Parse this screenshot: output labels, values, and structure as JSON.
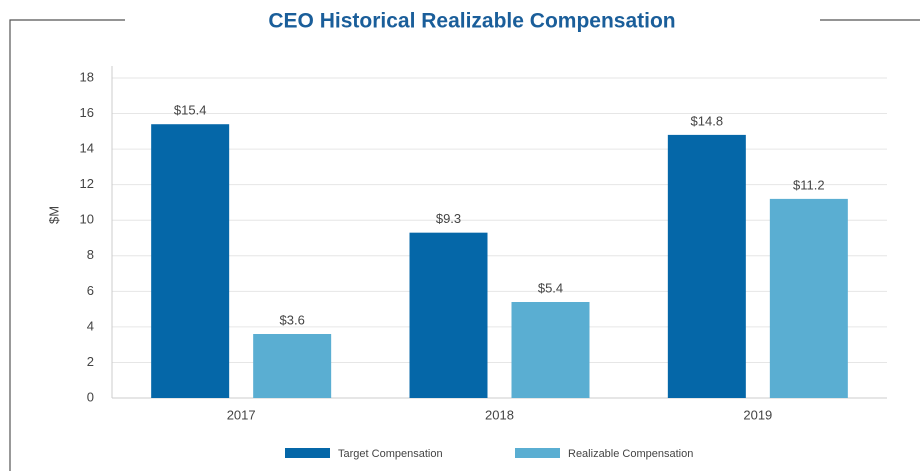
{
  "chart_data": {
    "type": "bar",
    "title": "CEO Historical Realizable Compensation",
    "y_label": "$M",
    "categories": [
      "2017",
      "2018",
      "2019"
    ],
    "series": [
      {
        "name": "Target Compensation",
        "color": "#0567a8",
        "values": [
          15.4,
          9.3,
          14.8
        ],
        "value_labels": [
          "$15.4",
          "$9.3",
          "$14.8"
        ]
      },
      {
        "name": "Realizable Compensation",
        "color": "#5aaed2",
        "values": [
          3.6,
          5.4,
          11.2
        ],
        "value_labels": [
          "$3.6",
          "$5.4",
          "$11.2"
        ]
      }
    ],
    "ylim": [
      0,
      18
    ],
    "yticks": [
      0,
      2,
      4,
      6,
      8,
      10,
      12,
      14,
      16,
      18
    ],
    "grid": true,
    "legend": "bottom"
  }
}
